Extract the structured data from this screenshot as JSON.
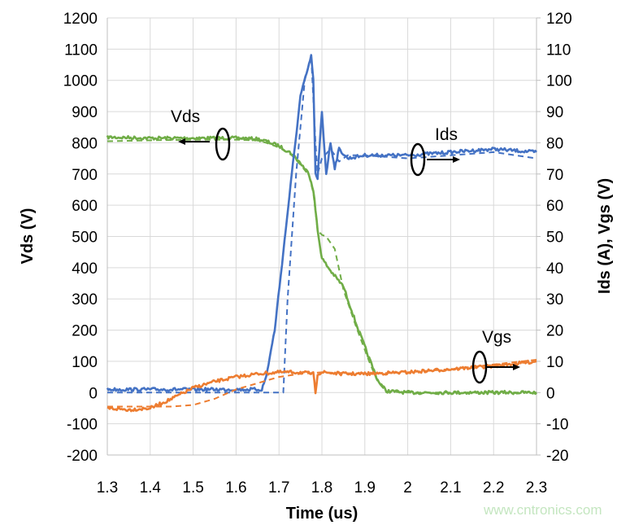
{
  "chart_data": {
    "type": "line",
    "xlabel": "Time (us)",
    "ylabel": "Vds (V)",
    "y2label": "Ids (A), Vgs (V)",
    "xlim": [
      1.3,
      2.3
    ],
    "ylim": [
      -200,
      1200
    ],
    "y2lim": [
      -20,
      120
    ],
    "xticks": [
      "1.3",
      "1.4",
      "1.5",
      "1.6",
      "1.7",
      "1.8",
      "1.9",
      "2",
      "2.1",
      "2.2",
      "2.3"
    ],
    "yticks": [
      "-200",
      "-100",
      "0",
      "100",
      "200",
      "300",
      "400",
      "500",
      "600",
      "700",
      "800",
      "900",
      "1000",
      "1100",
      "1200"
    ],
    "y2ticks": [
      "-20",
      "-10",
      "0",
      "10",
      "20",
      "30",
      "40",
      "50",
      "60",
      "70",
      "80",
      "90",
      "100",
      "110",
      "120"
    ],
    "grid": true,
    "colors": {
      "Vds": "#70ad47",
      "Ids": "#4472c4",
      "Vgs": "#ed7d31"
    },
    "series": [
      {
        "label": "Vds",
        "style": "solid",
        "axis": "left",
        "color": "#70ad47",
        "x": [
          1.3,
          1.4,
          1.5,
          1.6,
          1.65,
          1.67,
          1.7,
          1.73,
          1.75,
          1.77,
          1.78,
          1.79,
          1.8,
          1.82,
          1.85,
          1.88,
          1.91,
          1.93,
          1.95,
          2.0,
          2.1,
          2.2,
          2.3
        ],
        "y": [
          818,
          815,
          815,
          815,
          812,
          805,
          790,
          765,
          735,
          700,
          650,
          520,
          430,
          390,
          340,
          220,
          110,
          40,
          5,
          0,
          0,
          0,
          0
        ]
      },
      {
        "label": "Vds",
        "style": "dashed",
        "axis": "left",
        "color": "#70ad47",
        "x": [
          1.3,
          1.4,
          1.5,
          1.6,
          1.65,
          1.67,
          1.7,
          1.73,
          1.75,
          1.77,
          1.78,
          1.79,
          1.8,
          1.81,
          1.83,
          1.85,
          1.88,
          1.91,
          1.93,
          1.95,
          2.0,
          2.1,
          2.2,
          2.3
        ],
        "y": [
          805,
          808,
          810,
          810,
          808,
          800,
          785,
          760,
          730,
          695,
          640,
          520,
          505,
          500,
          460,
          330,
          210,
          100,
          35,
          3,
          0,
          0,
          0,
          0
        ]
      },
      {
        "label": "Ids",
        "style": "solid",
        "axis": "right",
        "color": "#4472c4",
        "x": [
          1.3,
          1.4,
          1.5,
          1.6,
          1.66,
          1.67,
          1.69,
          1.71,
          1.73,
          1.75,
          1.77,
          1.775,
          1.78,
          1.785,
          1.79,
          1.795,
          1.8,
          1.81,
          1.82,
          1.83,
          1.84,
          1.86,
          1.9,
          2.0,
          2.1,
          2.2,
          2.3
        ],
        "y": [
          1,
          1,
          1,
          1,
          1,
          5,
          20,
          45,
          70,
          95,
          105,
          108,
          100,
          70,
          68,
          80,
          90,
          70,
          80,
          72,
          78,
          75,
          76,
          76,
          77,
          78,
          77
        ]
      },
      {
        "label": "Ids",
        "style": "dashed",
        "axis": "right",
        "color": "#4472c4",
        "x": [
          1.3,
          1.4,
          1.5,
          1.6,
          1.7,
          1.71,
          1.72,
          1.74,
          1.76,
          1.775,
          1.785,
          1.79,
          1.8,
          1.82,
          1.84,
          1.86,
          1.9,
          2.0,
          2.1,
          2.2,
          2.3
        ],
        "y": [
          0,
          0,
          0,
          0,
          0,
          0,
          30,
          70,
          100,
          108,
          80,
          70,
          75,
          78,
          74,
          76,
          76,
          75,
          76,
          77,
          75
        ]
      },
      {
        "label": "Vgs",
        "style": "solid",
        "axis": "right",
        "color": "#ed7d31",
        "x": [
          1.3,
          1.35,
          1.4,
          1.45,
          1.5,
          1.55,
          1.6,
          1.65,
          1.7,
          1.75,
          1.78,
          1.785,
          1.79,
          1.8,
          1.85,
          1.9,
          2.0,
          2.1,
          2.2,
          2.3
        ],
        "y": [
          -5,
          -5.5,
          -5,
          -2,
          1.5,
          3.5,
          5,
          6,
          6.5,
          6.5,
          6,
          0,
          6,
          6.5,
          6,
          6,
          6.5,
          7.5,
          8.5,
          10
        ]
      },
      {
        "label": "Vgs",
        "style": "dashed",
        "axis": "right",
        "color": "#ed7d31",
        "x": [
          1.3,
          1.4,
          1.45,
          1.5,
          1.55,
          1.6,
          1.65,
          1.7,
          1.75,
          1.8,
          1.9,
          2.0,
          2.1,
          2.2,
          2.3
        ],
        "y": [
          -4.5,
          -4.5,
          -4.5,
          -4,
          -2,
          1,
          3,
          5,
          6,
          6.5,
          6,
          6.5,
          7.5,
          9,
          10.5
        ]
      }
    ],
    "annotations": [
      {
        "text": "Vds",
        "arrow": "left"
      },
      {
        "text": "Ids",
        "arrow": "right"
      },
      {
        "text": "Vgs",
        "arrow": "right"
      }
    ]
  },
  "watermark": "www.cntronics.com"
}
